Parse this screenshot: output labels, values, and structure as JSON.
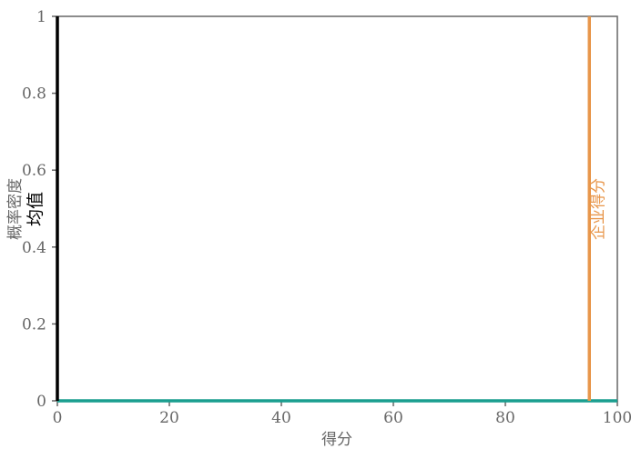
{
  "chart_data": {
    "type": "line",
    "title": "",
    "xlabel": "得分",
    "ylabel": "概率密度",
    "xlim": [
      0,
      100
    ],
    "ylim": [
      0,
      1
    ],
    "x_ticks": [
      "0",
      "20",
      "40",
      "60",
      "80",
      "100"
    ],
    "y_ticks": [
      "0",
      "0.2",
      "0.4",
      "0.6",
      "0.8",
      "1"
    ],
    "grid": false,
    "series": [
      {
        "name": "",
        "color": "#1a9e8f",
        "x": [
          0,
          100
        ],
        "values": [
          0,
          0
        ]
      }
    ],
    "vlines": [
      {
        "label": "均值",
        "x": 0,
        "color": "#000000"
      },
      {
        "label": "企业得分",
        "x": 95,
        "color": "#e8964a"
      }
    ]
  }
}
